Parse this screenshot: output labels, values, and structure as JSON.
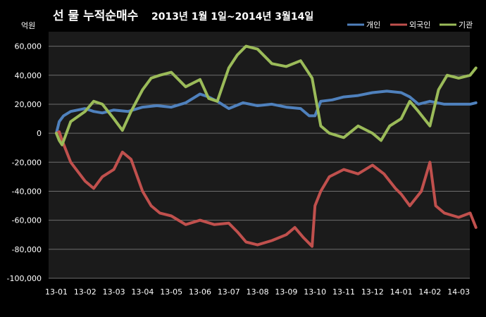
{
  "chart_data": {
    "type": "line",
    "title": "선 물 누적순매수",
    "subtitle": "2013년 1월 1일~2014년 3월14일",
    "unit_label": "억원",
    "ylim": [
      -100000,
      70000
    ],
    "yticks": [
      60000,
      40000,
      20000,
      0,
      -20000,
      -40000,
      -60000,
      -80000,
      -100000
    ],
    "ytick_labels": [
      "60,000",
      "40,000",
      "20,000",
      "0",
      "-20,000",
      "-40,000",
      "-60,000",
      "-80,000",
      "-100,000"
    ],
    "xlim": [
      0,
      14.6
    ],
    "xticks": [
      0,
      1,
      2,
      3,
      4,
      5,
      6,
      7,
      8,
      9,
      10,
      11,
      12,
      13,
      14
    ],
    "xtick_labels": [
      "13-01",
      "13-02",
      "13-03",
      "13-04",
      "13-05",
      "13-06",
      "13-07",
      "13-08",
      "13-09",
      "13-10",
      "13-11",
      "13-12",
      "14-01",
      "14-02",
      "14-03"
    ],
    "legend_position": "top-right",
    "grid": true,
    "series": [
      {
        "name": "개인",
        "color": "#4f81bd",
        "points": [
          [
            0,
            0
          ],
          [
            0.1,
            8000
          ],
          [
            0.25,
            12000
          ],
          [
            0.5,
            15000
          ],
          [
            1,
            17000
          ],
          [
            1.3,
            15000
          ],
          [
            1.6,
            14000
          ],
          [
            2,
            16000
          ],
          [
            2.5,
            15000
          ],
          [
            3,
            18000
          ],
          [
            3.5,
            19000
          ],
          [
            4,
            18000
          ],
          [
            4.5,
            21000
          ],
          [
            5,
            27000
          ],
          [
            5.3,
            25000
          ],
          [
            5.6,
            22000
          ],
          [
            6,
            17000
          ],
          [
            6.5,
            21000
          ],
          [
            7,
            19000
          ],
          [
            7.5,
            20000
          ],
          [
            8,
            18000
          ],
          [
            8.5,
            17000
          ],
          [
            8.8,
            12000
          ],
          [
            9,
            12000
          ],
          [
            9.2,
            22000
          ],
          [
            9.6,
            23000
          ],
          [
            10,
            25000
          ],
          [
            10.5,
            26000
          ],
          [
            11,
            28000
          ],
          [
            11.5,
            29000
          ],
          [
            12,
            28000
          ],
          [
            12.3,
            25000
          ],
          [
            12.6,
            20000
          ],
          [
            13,
            22000
          ],
          [
            13.5,
            20000
          ],
          [
            14,
            20000
          ],
          [
            14.4,
            20000
          ],
          [
            14.6,
            21000
          ]
        ]
      },
      {
        "name": "외국인",
        "color": "#c0504d",
        "points": [
          [
            0,
            0
          ],
          [
            0.1,
            1000
          ],
          [
            0.2,
            -5000
          ],
          [
            0.5,
            -20000
          ],
          [
            1,
            -33000
          ],
          [
            1.3,
            -38000
          ],
          [
            1.6,
            -30000
          ],
          [
            2,
            -25000
          ],
          [
            2.3,
            -13000
          ],
          [
            2.6,
            -18000
          ],
          [
            3,
            -40000
          ],
          [
            3.3,
            -50000
          ],
          [
            3.6,
            -55000
          ],
          [
            4,
            -57000
          ],
          [
            4.5,
            -63000
          ],
          [
            5,
            -60000
          ],
          [
            5.5,
            -63000
          ],
          [
            6,
            -62000
          ],
          [
            6.3,
            -68000
          ],
          [
            6.6,
            -75000
          ],
          [
            7,
            -77000
          ],
          [
            7.5,
            -74000
          ],
          [
            8,
            -70000
          ],
          [
            8.3,
            -65000
          ],
          [
            8.6,
            -72000
          ],
          [
            8.9,
            -78000
          ],
          [
            9,
            -50000
          ],
          [
            9.2,
            -40000
          ],
          [
            9.5,
            -30000
          ],
          [
            10,
            -25000
          ],
          [
            10.5,
            -28000
          ],
          [
            11,
            -22000
          ],
          [
            11.4,
            -28000
          ],
          [
            11.8,
            -38000
          ],
          [
            12,
            -42000
          ],
          [
            12.3,
            -50000
          ],
          [
            12.7,
            -40000
          ],
          [
            13,
            -20000
          ],
          [
            13.2,
            -50000
          ],
          [
            13.5,
            -55000
          ],
          [
            14,
            -58000
          ],
          [
            14.4,
            -55000
          ],
          [
            14.6,
            -65000
          ]
        ]
      },
      {
        "name": "기관",
        "color": "#9bbb59",
        "points": [
          [
            0,
            0
          ],
          [
            0.1,
            -5000
          ],
          [
            0.2,
            -8000
          ],
          [
            0.5,
            8000
          ],
          [
            1,
            15000
          ],
          [
            1.3,
            22000
          ],
          [
            1.6,
            20000
          ],
          [
            2,
            10000
          ],
          [
            2.3,
            2000
          ],
          [
            2.6,
            15000
          ],
          [
            3,
            30000
          ],
          [
            3.3,
            38000
          ],
          [
            3.6,
            40000
          ],
          [
            4,
            42000
          ],
          [
            4.5,
            32000
          ],
          [
            5,
            37000
          ],
          [
            5.3,
            24000
          ],
          [
            5.6,
            22000
          ],
          [
            6,
            45000
          ],
          [
            6.3,
            54000
          ],
          [
            6.6,
            60000
          ],
          [
            7,
            58000
          ],
          [
            7.5,
            48000
          ],
          [
            8,
            46000
          ],
          [
            8.5,
            50000
          ],
          [
            8.9,
            38000
          ],
          [
            9.2,
            5000
          ],
          [
            9.5,
            0
          ],
          [
            10,
            -3000
          ],
          [
            10.5,
            5000
          ],
          [
            11,
            0
          ],
          [
            11.3,
            -5000
          ],
          [
            11.6,
            5000
          ],
          [
            12,
            10000
          ],
          [
            12.3,
            22000
          ],
          [
            12.6,
            15000
          ],
          [
            13,
            5000
          ],
          [
            13.3,
            30000
          ],
          [
            13.6,
            40000
          ],
          [
            14,
            38000
          ],
          [
            14.4,
            40000
          ],
          [
            14.6,
            45000
          ]
        ]
      }
    ]
  }
}
